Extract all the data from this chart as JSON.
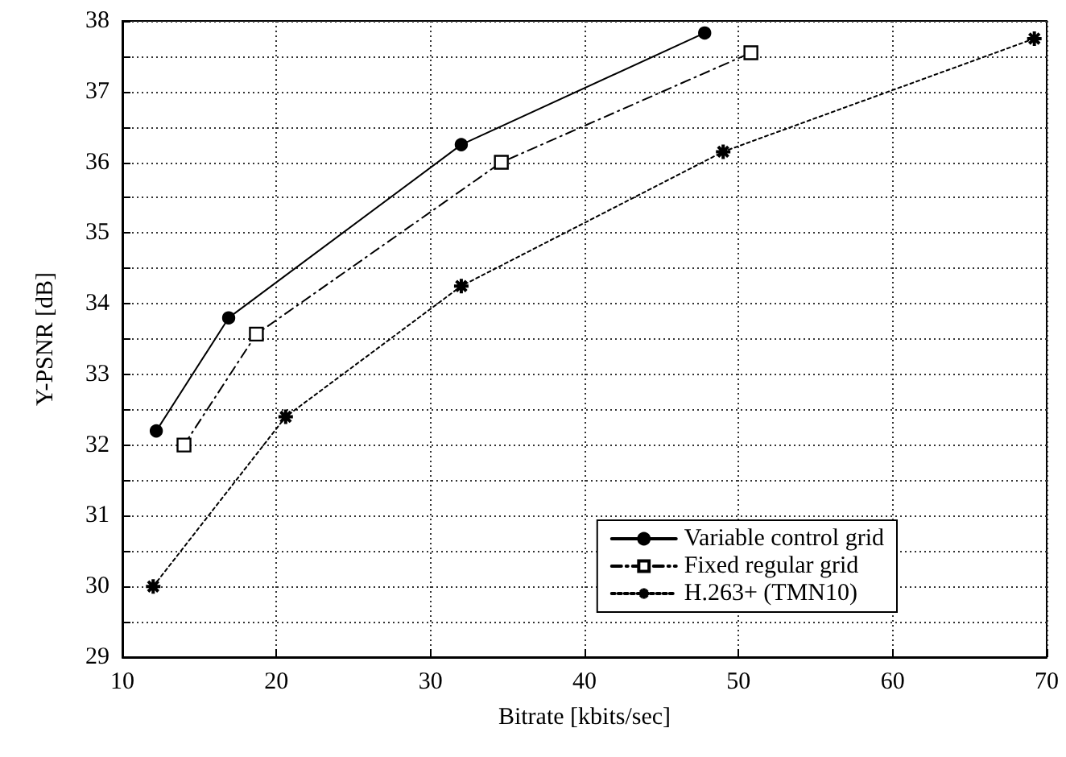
{
  "chart_data": {
    "type": "line",
    "xlabel": "Bitrate [kbits/sec]",
    "ylabel": "Y-PSNR [dB]",
    "xlim": [
      10,
      70
    ],
    "xticks": [
      10,
      20,
      30,
      40,
      50,
      60,
      70
    ],
    "ylim": [
      29,
      38
    ],
    "yticks": [
      29,
      {
        "value": 29.5,
        "label": null
      },
      30,
      {
        "value": 30.5,
        "label": null
      },
      31,
      {
        "value": 31.5,
        "label": null
      },
      32,
      {
        "value": 32.5,
        "label": null
      },
      33,
      {
        "value": 33.5,
        "label": null
      },
      34,
      {
        "value": 34.5,
        "label": null
      },
      35,
      {
        "value": 35.5,
        "label": null
      },
      36,
      {
        "value": 36.5,
        "label": null
      },
      37,
      {
        "value": 37.5,
        "label": null
      },
      38
    ],
    "grid": true,
    "legend": "bottom right",
    "series": [
      {
        "name": "Variable control grid",
        "color": "#000000",
        "marker": "circle",
        "line_style": "solid",
        "x": [
          12.2,
          16.9,
          32,
          47.8
        ],
        "values": [
          32.2,
          33.8,
          36.25,
          37.83
        ]
      },
      {
        "name": "Fixed regular grid",
        "color": "#000000",
        "marker": "square",
        "line_style": "dashed",
        "x": [
          14,
          18.7,
          34.6,
          50.8
        ],
        "values": [
          32,
          33.57,
          36.0,
          37.55
        ]
      },
      {
        "name": "H.263+ (TMN10)",
        "color": "#000000",
        "marker": "cross",
        "line_style": "dotted",
        "x": [
          12,
          20.6,
          32,
          49,
          69.2
        ],
        "values": [
          30,
          32.4,
          34.25,
          36.15,
          37.75
        ]
      }
    ]
  }
}
